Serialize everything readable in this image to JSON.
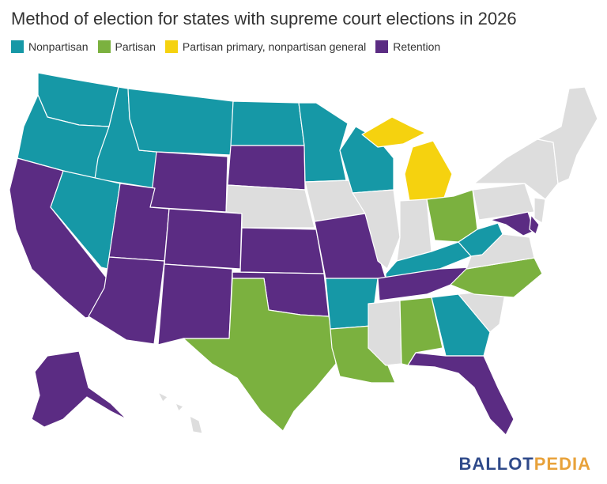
{
  "title": "Method of election for states with supreme court elections in 2026",
  "legend": [
    {
      "label": "Nonpartisan",
      "color": "#1698a6"
    },
    {
      "label": "Partisan",
      "color": "#7bb13f"
    },
    {
      "label": "Partisan primary, nonpartisan general",
      "color": "#f5d20f"
    },
    {
      "label": "Retention",
      "color": "#5b2c83"
    }
  ],
  "no_election_color": "#dddddd",
  "brand": {
    "part1": "BALLOT",
    "part2": "PEDIA"
  }
}
